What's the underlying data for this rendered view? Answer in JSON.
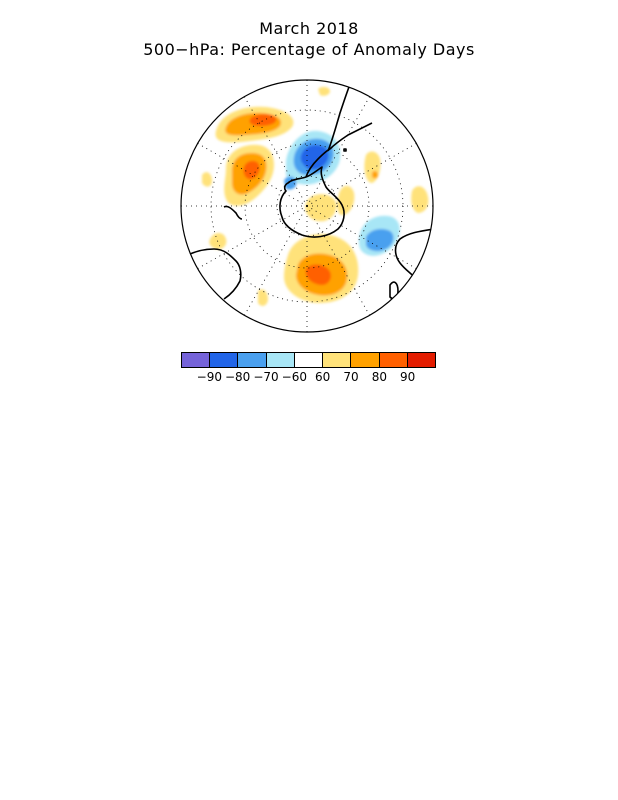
{
  "title": {
    "line1": "March 2018",
    "line2": "500−hPa: Percentage of Anomaly Days"
  },
  "map": {
    "projection": "polar-stereographic",
    "hemisphere": "southern",
    "ocean_color": "#ffffff",
    "coast_color": "#000000",
    "anomaly_regions": [
      {
        "sign": "positive",
        "area": "south-pacific-west",
        "max_percent": 90
      },
      {
        "sign": "positive",
        "area": "south-pacific-east",
        "max_percent": 90
      },
      {
        "sign": "positive",
        "area": "south-indian-ocean",
        "max_percent": 90
      },
      {
        "sign": "positive",
        "area": "south-atlantic-east",
        "max_percent": 70
      },
      {
        "sign": "negative",
        "area": "antarctic-peninsula-drake-passage",
        "max_percent": 80
      },
      {
        "sign": "negative",
        "area": "south-atlantic-south-of-africa",
        "max_percent": 70
      }
    ]
  },
  "colorbar": {
    "colors": [
      "#7563d9",
      "#2265e8",
      "#4aa0ef",
      "#a8e6f6",
      "#ffffff",
      "#ffe27a",
      "#ffa100",
      "#ff6000",
      "#e31c00"
    ],
    "labels": [
      "−90",
      "−80",
      "−70",
      "−60",
      "60",
      "70",
      "80",
      "90"
    ]
  }
}
